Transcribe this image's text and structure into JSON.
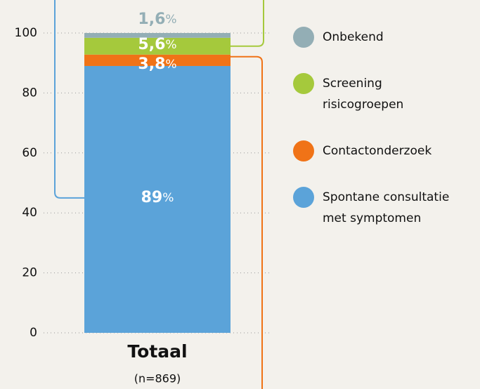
{
  "chart_data": {
    "type": "stacked-bar",
    "categories": [
      "Totaal"
    ],
    "subtitle": "(n=869)",
    "series": [
      {
        "name": "Spontane consultatie met symptomen",
        "color": "#5ba3d9",
        "values": [
          89
        ],
        "value_labels": [
          "89%"
        ]
      },
      {
        "name": "Contactonderzoek",
        "color": "#f07317",
        "values": [
          3.8
        ],
        "value_labels": [
          "3,8%"
        ]
      },
      {
        "name": "Screening risicogroepen",
        "color": "#a5c93c",
        "values": [
          5.6
        ],
        "value_labels": [
          "5,6%"
        ]
      },
      {
        "name": "Onbekend",
        "color": "#93aeb5",
        "values": [
          1.6
        ],
        "value_labels": [
          "1,6%"
        ]
      }
    ],
    "ylim": [
      0,
      100
    ],
    "yticks": [
      0,
      20,
      40,
      60,
      80,
      100
    ],
    "grid": true
  }
}
